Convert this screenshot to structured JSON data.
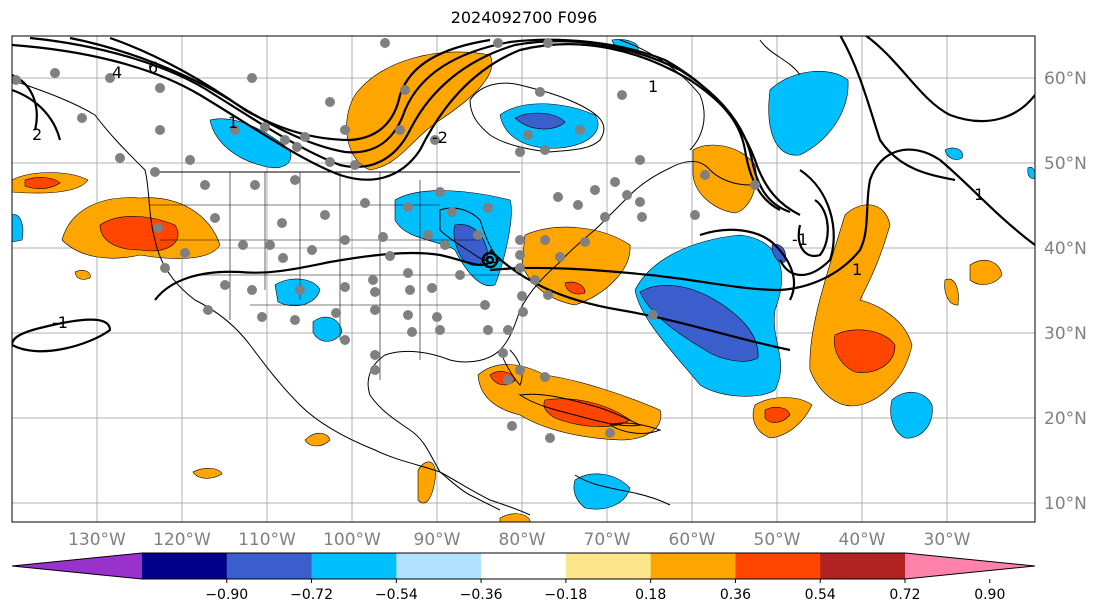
{
  "title": "2024092700 F096",
  "map": {
    "projection": "lat-lon",
    "lon_range_deg": [
      -138,
      16
    ],
    "lat_range_deg": [
      7.5,
      65
    ],
    "gridlines": true,
    "lon_labels": [
      "130°W",
      "120°W",
      "110°W",
      "100°W",
      "90°W",
      "80°W",
      "70°W",
      "60°W",
      "50°W",
      "40°W",
      "30°W"
    ],
    "lat_labels": [
      "60°N",
      "50°N",
      "40°N",
      "30°N",
      "20°N",
      "10°N"
    ],
    "label_color": "#808080",
    "dot_color": "#808080",
    "contour_labels": [
      "6",
      "4",
      "2",
      "-2",
      "1",
      "-1",
      "1",
      "1",
      "-1",
      "1"
    ]
  },
  "colorbar": {
    "labels": [
      "−0.90",
      "−0.72",
      "−0.54",
      "−0.36",
      "−0.18",
      "0.18",
      "0.36",
      "0.54",
      "0.72",
      "0.90"
    ],
    "colors": [
      "#9932cc",
      "#00008b",
      "#3a5fcd",
      "#00bfff",
      "#b0e2ff",
      "#ffffff",
      "#fce68c",
      "#ffa500",
      "#ff4500",
      "#b22222",
      "#ff82ab"
    ],
    "extend": "both"
  },
  "palette": {
    "neg_light": "#00bfff",
    "neg_mid": "#3a5fcd",
    "pos_light": "#ffa500",
    "pos_mid": "#ff4500"
  }
}
